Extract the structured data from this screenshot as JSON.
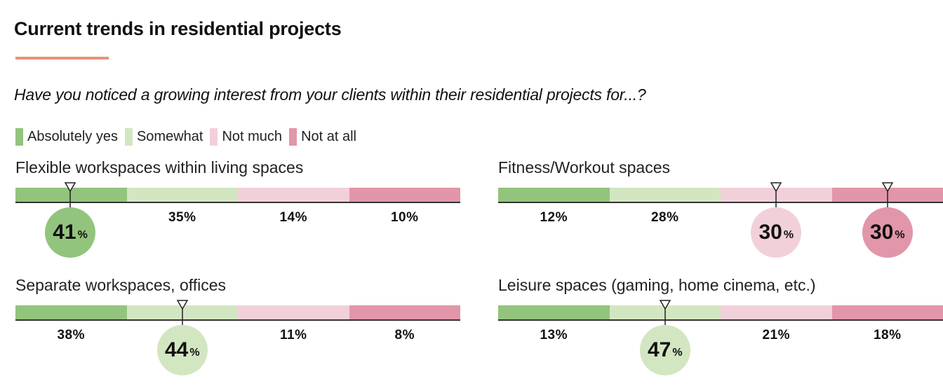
{
  "header": {
    "title": "Current trends in residential projects",
    "question": "Have you noticed a growing interest from your clients within their residential projects for...?"
  },
  "colors": {
    "absolutely_yes": "#93c47d",
    "somewhat": "#d3e6c2",
    "not_much": "#f2d0d9",
    "not_at_all": "#e196a9",
    "accent_rule": "#e8927a"
  },
  "chart_data": {
    "type": "bar",
    "stacked": true,
    "orientation": "horizontal",
    "categories": [
      "Absolutely yes",
      "Somewhat",
      "Not much",
      "Not at all"
    ],
    "legend": [
      "Absolutely yes",
      "Somewhat",
      "Not much",
      "Not at all"
    ],
    "legend_position": "top-left",
    "unit": "%",
    "panels": [
      {
        "title": "Flexible workspaces within living spaces",
        "values": [
          41,
          35,
          14,
          10
        ],
        "highlight": [
          0
        ]
      },
      {
        "title": "Fitness/Workout spaces",
        "values": [
          12,
          28,
          30,
          30
        ],
        "highlight": [
          2,
          3
        ]
      },
      {
        "title": "Separate workspaces, offices",
        "values": [
          38,
          44,
          11,
          8
        ],
        "highlight": [
          1
        ]
      },
      {
        "title": "Leisure spaces (gaming, home cinema, etc.)",
        "values": [
          13,
          47,
          21,
          18
        ],
        "highlight": [
          1
        ]
      }
    ]
  }
}
